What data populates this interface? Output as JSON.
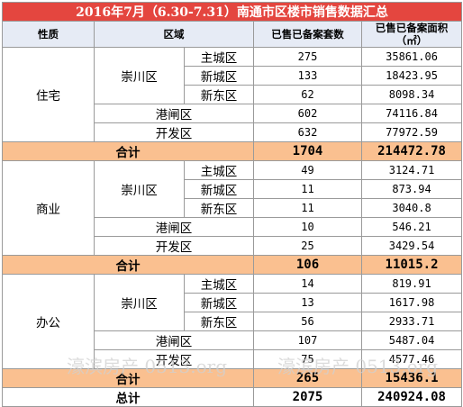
{
  "title": "2016年7月（6.30-7.31）南通市区楼市销售数据汇总",
  "headers": {
    "property_type": "性质",
    "zone": "区域",
    "units": "已售已备案套数",
    "area": "已售已备案面积",
    "area_unit": "（㎡）"
  },
  "sections": [
    {
      "type": "住宅",
      "district": "崇川区",
      "sub_rows": [
        {
          "sub": "主城区",
          "units": "275",
          "area": "35861.06"
        },
        {
          "sub": "新城区",
          "units": "133",
          "area": "18423.95"
        },
        {
          "sub": "新东区",
          "units": "62",
          "area": "8098.34"
        }
      ],
      "zone_rows": [
        {
          "zone": "港闸区",
          "units": "602",
          "area": "74116.84"
        },
        {
          "zone": "开发区",
          "units": "632",
          "area": "77972.59"
        }
      ],
      "subtotal": {
        "label": "合计",
        "units": "1704",
        "area": "214472.78"
      }
    },
    {
      "type": "商业",
      "district": "崇川区",
      "sub_rows": [
        {
          "sub": "主城区",
          "units": "49",
          "area": "3124.71"
        },
        {
          "sub": "新城区",
          "units": "11",
          "area": "873.94"
        },
        {
          "sub": "新东区",
          "units": "11",
          "area": "3040.8"
        }
      ],
      "zone_rows": [
        {
          "zone": "港闸区",
          "units": "10",
          "area": "546.21"
        },
        {
          "zone": "开发区",
          "units": "25",
          "area": "3429.54"
        }
      ],
      "subtotal": {
        "label": "合计",
        "units": "106",
        "area": "11015.2"
      }
    },
    {
      "type": "办公",
      "district": "崇川区",
      "sub_rows": [
        {
          "sub": "主城区",
          "units": "14",
          "area": "819.91"
        },
        {
          "sub": "新城区",
          "units": "13",
          "area": "1617.98"
        },
        {
          "sub": "新东区",
          "units": "56",
          "area": "2933.71"
        }
      ],
      "zone_rows": [
        {
          "zone": "港闸区",
          "units": "107",
          "area": "5487.04"
        },
        {
          "zone": "开发区",
          "units": "75",
          "area": "4577.46"
        }
      ],
      "subtotal": {
        "label": "合计",
        "units": "265",
        "area": "15436.1"
      }
    }
  ],
  "total": {
    "label": "总计",
    "units": "2075",
    "area": "240924.08"
  },
  "watermark": {
    "left": "濠滨房产 0513.org",
    "right": "濠滨房产 0513.org"
  },
  "colors": {
    "title_bg": "#e4463f",
    "header_bg": "#e6ebf5",
    "subtotal_bg": "#fac090",
    "border": "#9a9a9a"
  }
}
